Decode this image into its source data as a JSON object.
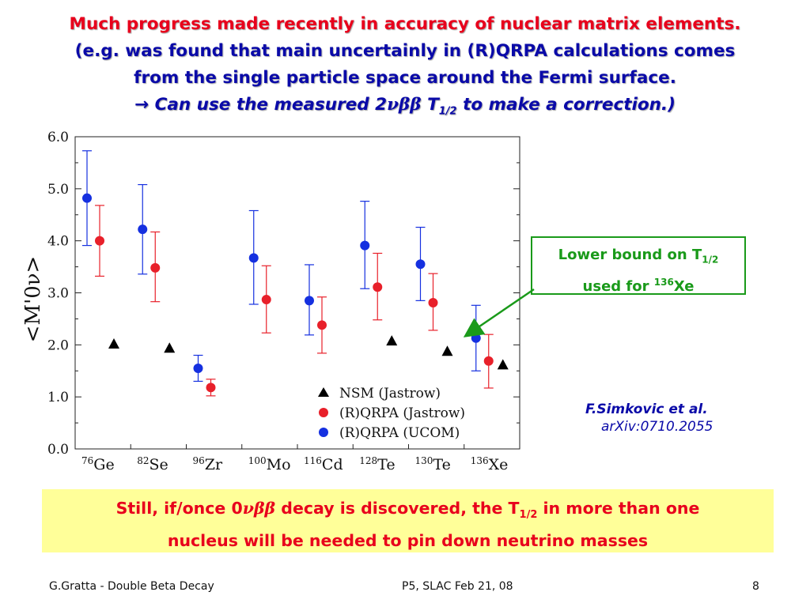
{
  "title": {
    "line1": "Much progress made recently in accuracy of nuclear matrix elements.",
    "line2": "(e.g. was found that main uncertainly in (R)QRPA calculations comes",
    "line3": "from the single particle space around the Fermi surface.",
    "line4_arrow": "→",
    "line4_pre": "Can use the measured 2",
    "line4_greek": "νββ",
    "line4_T": "T",
    "line4_sub": "1/2",
    "line4_post": "to make a correction.)",
    "colors": {
      "red": "#e8001c",
      "blue": "#0a0aa8"
    }
  },
  "callout": {
    "line1_pre": "Lower bound on T",
    "line1_sub": "1/2",
    "line2_pre": "used for ",
    "line2_sup": "136",
    "line2_post": "Xe",
    "color": "#1a9a1a"
  },
  "reference": {
    "author": "F.Simkovic et al.",
    "id": "arXiv:0710.2055"
  },
  "note": {
    "pre": "Still, if/once 0",
    "greek": "νββ",
    "mid": " decay is discovered, the T",
    "sub": "1/2",
    "post": " in more than one",
    "line2": "nucleus will be needed to pin down neutrino masses",
    "background": "#ffff99"
  },
  "footer": {
    "left": "G.Gratta - Double Beta Decay",
    "center": "P5, SLAC Feb 21, 08",
    "page": "8"
  },
  "chart_data": {
    "type": "scatter",
    "ylabel": "<M'0ν>",
    "ylim": [
      0,
      6
    ],
    "yticks": [
      "0.0",
      "1.0",
      "2.0",
      "3.0",
      "4.0",
      "5.0",
      "6.0"
    ],
    "grid": false,
    "legend_position": "bottom-right",
    "categories": [
      {
        "mass": "76",
        "sym": "Ge"
      },
      {
        "mass": "82",
        "sym": "Se"
      },
      {
        "mass": "96",
        "sym": "Zr"
      },
      {
        "mass": "100",
        "sym": "Mo"
      },
      {
        "mass": "116",
        "sym": "Cd"
      },
      {
        "mass": "128",
        "sym": "Te"
      },
      {
        "mass": "130",
        "sym": "Te"
      },
      {
        "mass": "136",
        "sym": "Xe"
      }
    ],
    "series": [
      {
        "name": "NSM (Jastrow)",
        "marker": "triangle",
        "color": "#000000",
        "values": [
          2.02,
          1.94,
          null,
          null,
          null,
          2.08,
          1.88,
          1.62
        ]
      },
      {
        "name": "(R)QRPA (Jastrow)",
        "marker": "circle",
        "color": "#e8202a",
        "values": [
          4.0,
          3.48,
          1.18,
          2.87,
          2.38,
          3.11,
          2.81,
          1.69
        ],
        "err_low": [
          3.32,
          2.83,
          1.02,
          2.23,
          1.84,
          2.48,
          2.28,
          1.17
        ],
        "err_high": [
          4.68,
          4.17,
          1.34,
          3.52,
          2.92,
          3.76,
          3.37,
          2.2
        ]
      },
      {
        "name": "(R)QRPA (UCOM)",
        "marker": "circle",
        "color": "#1530e0",
        "values": [
          4.82,
          4.22,
          1.55,
          3.67,
          2.85,
          3.91,
          3.55,
          2.13
        ],
        "err_low": [
          3.91,
          3.36,
          1.3,
          2.78,
          2.19,
          3.08,
          2.85,
          1.5
        ],
        "err_high": [
          5.73,
          5.08,
          1.8,
          4.58,
          3.54,
          4.76,
          4.26,
          2.76
        ]
      }
    ]
  }
}
